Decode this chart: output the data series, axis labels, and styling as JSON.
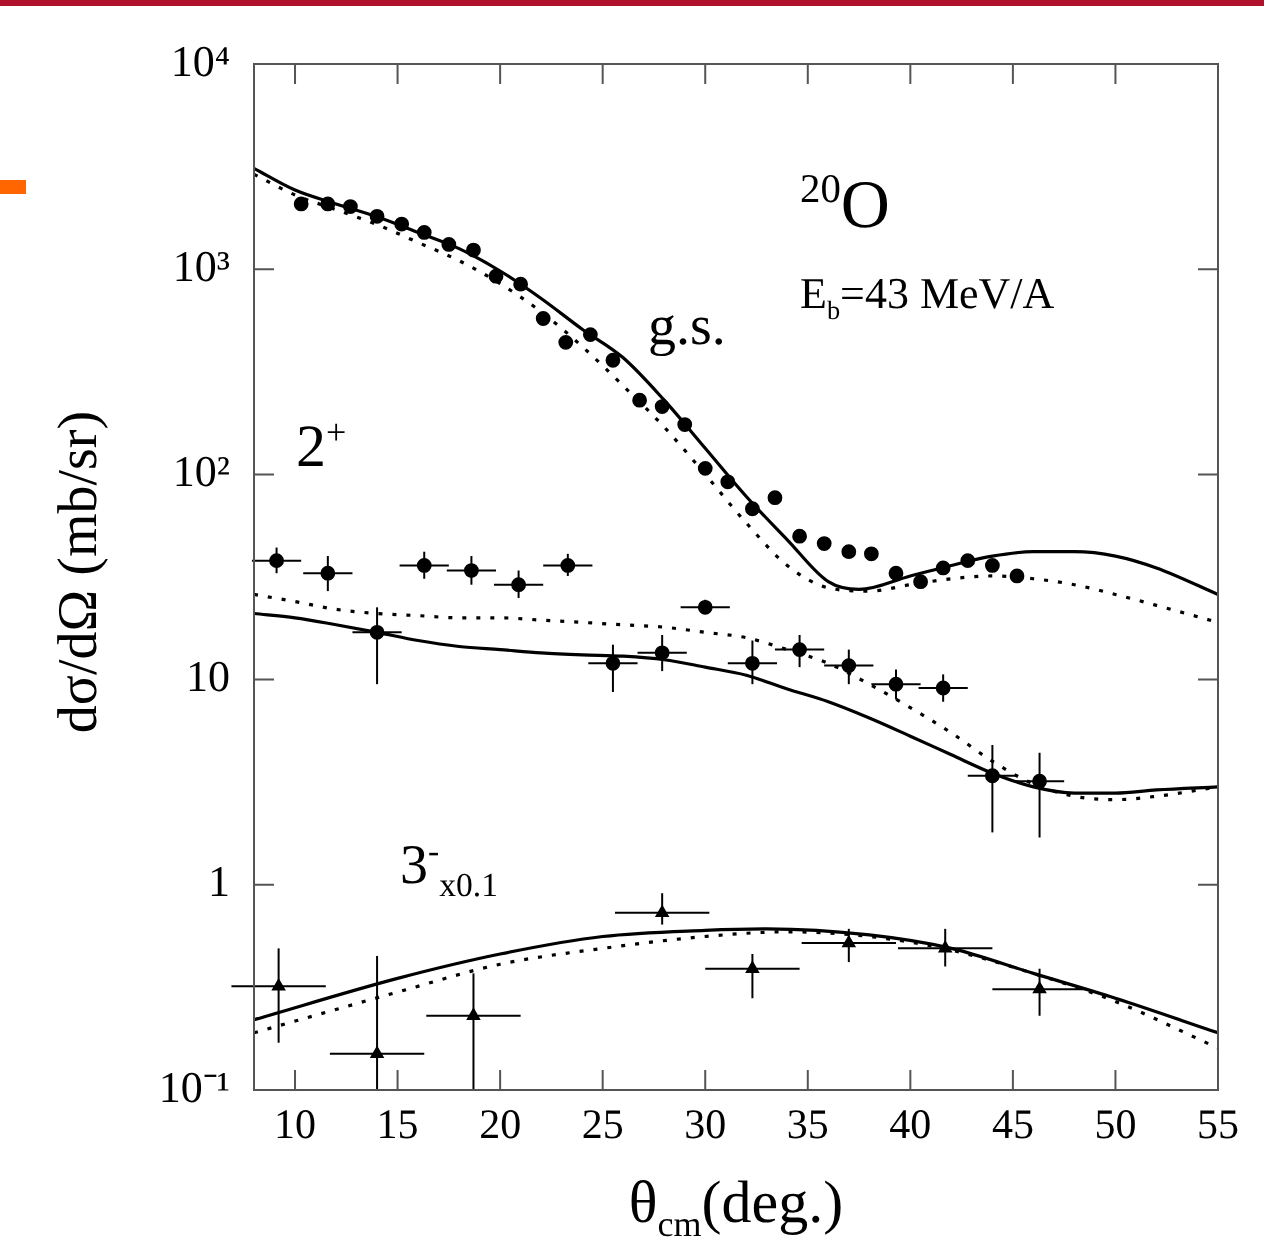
{
  "chart_data": {
    "type": "line",
    "xlabel": "θ$_{cm}$(deg.)",
    "ylabel": "dσ/dΩ (mb/sr)",
    "log": "y",
    "grid": false,
    "xlim": [
      8,
      55
    ],
    "xticks": [
      10,
      15,
      20,
      25,
      30,
      35,
      40,
      45,
      50,
      55
    ],
    "ylim": [
      0.1,
      10000
    ],
    "yticks": [
      {
        "value": 0.1,
        "label": "10⁻¹"
      },
      {
        "value": 1,
        "label": "1"
      },
      {
        "value": 10,
        "label": "10"
      },
      {
        "value": 100,
        "label": "10²"
      },
      {
        "value": 1000,
        "label": "10³"
      },
      {
        "value": 10000,
        "label": "10⁴"
      }
    ],
    "annotations": [
      "g.s.",
      "2$^{+}$",
      "3$^{-}$$_{x0.1}$",
      "$^{20}$O",
      "E$_{b}$=43 MeV/A"
    ],
    "series": [
      {
        "type": "scatter",
        "marker": "circle",
        "color": "#000000",
        "x": [
          10.3,
          11.6,
          12.7,
          14.0,
          15.2,
          16.3,
          17.5,
          18.7,
          19.8,
          21.0,
          22.1,
          23.2,
          24.4,
          25.5,
          26.8,
          27.9,
          29.0,
          30.0,
          31.1,
          32.3,
          33.4,
          34.6,
          35.8,
          37.0,
          38.1,
          39.3,
          40.5,
          41.6,
          42.8,
          44.0,
          45.2
        ],
        "values": [
          2080,
          2080,
          2020,
          1810,
          1660,
          1510,
          1320,
          1240,
          925,
          845,
          575,
          440,
          480,
          360,
          230,
          214,
          175,
          107,
          92,
          68,
          77,
          50,
          46,
          42,
          41,
          33,
          30,
          35,
          38,
          36,
          32
        ]
      },
      {
        "line_style": "solid",
        "color": "#000000",
        "x": [
          8,
          10,
          12,
          14,
          16,
          18,
          20,
          22,
          24,
          26,
          28,
          30,
          32,
          34,
          36,
          37.5,
          40,
          42,
          44,
          46,
          48,
          50,
          52,
          55
        ],
        "values": [
          3100,
          2430,
          2080,
          1800,
          1510,
          1260,
          980,
          720,
          510,
          370,
          230,
          134,
          78,
          48,
          30,
          27.5,
          32,
          36,
          40,
          42,
          42,
          40,
          35,
          26
        ]
      },
      {
        "line_style": "dotted",
        "color": "#000000",
        "x": [
          8,
          10,
          12,
          14,
          16,
          18,
          20,
          22,
          24,
          26,
          28,
          30,
          32,
          34,
          36,
          38,
          40,
          42,
          44,
          46,
          48,
          50,
          52,
          55
        ],
        "values": [
          2900,
          2300,
          1950,
          1650,
          1350,
          1100,
          850,
          620,
          420,
          270,
          170,
          100,
          58,
          36,
          28,
          27,
          29,
          31,
          32,
          31,
          29,
          26,
          23,
          19
        ]
      },
      {
        "type": "scatter",
        "marker": "circle",
        "color": "#000000",
        "x": [
          9.1,
          11.6,
          14.0,
          16.3,
          18.6,
          20.9,
          23.3,
          25.5,
          27.9,
          30.0,
          32.3,
          34.6,
          37.0,
          39.3,
          41.6,
          44.0,
          46.3
        ],
        "values": [
          38,
          33,
          17,
          36,
          34,
          29,
          36,
          12,
          13.5,
          22.5,
          12,
          14,
          11.7,
          9.5,
          9.1,
          3.4,
          3.2
        ],
        "errors": [
          [
            33,
            44
          ],
          [
            27,
            40
          ],
          [
            9.5,
            22.5
          ],
          [
            31,
            42
          ],
          [
            29,
            40
          ],
          [
            25,
            34
          ],
          [
            32,
            41
          ],
          [
            8.7,
            14.8
          ],
          [
            11,
            16.5
          ],
          [
            21,
            24.5
          ],
          [
            9.5,
            15.5
          ],
          [
            11.5,
            16.5
          ],
          [
            9.5,
            14
          ],
          [
            8,
            11.2
          ],
          [
            7.8,
            10.6
          ],
          [
            1.8,
            4.8
          ],
          [
            1.7,
            4.4
          ]
        ],
        "xerrors": [
          1.2,
          1.2,
          1.2,
          1.2,
          1.2,
          1.2,
          1.2,
          1.2,
          1.2,
          1.2,
          1.2,
          1.2,
          1.2,
          1.2,
          1.2,
          1.2,
          1.2
        ]
      },
      {
        "line_style": "solid",
        "color": "#000000",
        "x": [
          8,
          10,
          12,
          14,
          16,
          18,
          20,
          22,
          24,
          26,
          28,
          30,
          32,
          34,
          36,
          38,
          40,
          42,
          44,
          46,
          48,
          50,
          52,
          55
        ],
        "values": [
          21,
          20,
          18.5,
          17,
          15.5,
          14.5,
          14,
          13.5,
          13.2,
          13,
          12.5,
          11.5,
          10.5,
          9,
          7.8,
          6.5,
          5.3,
          4.3,
          3.5,
          3.0,
          2.8,
          2.8,
          2.9,
          3.0
        ]
      },
      {
        "line_style": "dotted",
        "color": "#000000",
        "x": [
          8,
          10,
          12,
          14,
          16,
          18,
          20,
          22,
          24,
          26,
          28,
          30,
          32,
          34,
          36,
          38,
          40,
          42,
          44,
          46,
          48,
          50,
          52,
          55
        ],
        "values": [
          26,
          24,
          22,
          21,
          20.5,
          20,
          20,
          19.5,
          19,
          18.5,
          18,
          17,
          16,
          14,
          12,
          9.5,
          7.3,
          5.5,
          4,
          3.1,
          2.7,
          2.6,
          2.7,
          3.0
        ]
      },
      {
        "type": "scatter",
        "marker": "triangle",
        "color": "#000000",
        "x": [
          9.2,
          14.0,
          18.7,
          27.9,
          32.3,
          37.0,
          41.7,
          46.3
        ],
        "values": [
          0.32,
          0.15,
          0.23,
          0.73,
          0.39,
          0.52,
          0.49,
          0.31
        ],
        "errors": [
          [
            0.17,
            0.49
          ],
          [
            0.1,
            0.45
          ],
          [
            0.1,
            0.37
          ],
          [
            0.64,
            0.91
          ],
          [
            0.28,
            0.46
          ],
          [
            0.42,
            0.61
          ],
          [
            0.4,
            0.61
          ],
          [
            0.23,
            0.39
          ]
        ],
        "xerrors": [
          2.3,
          2.3,
          2.3,
          2.3,
          2.3,
          2.3,
          2.3,
          2.3
        ]
      },
      {
        "line_style": "solid",
        "color": "#000000",
        "x": [
          8,
          15,
          20,
          25,
          30,
          33,
          38,
          42,
          46,
          50,
          55
        ],
        "values": [
          0.22,
          0.35,
          0.46,
          0.56,
          0.6,
          0.61,
          0.57,
          0.49,
          0.37,
          0.28,
          0.19
        ]
      },
      {
        "line_style": "dotted",
        "color": "#000000",
        "x": [
          8,
          15,
          20,
          25,
          30,
          34,
          38,
          42,
          46,
          50,
          55
        ],
        "values": [
          0.19,
          0.3,
          0.41,
          0.49,
          0.56,
          0.59,
          0.56,
          0.48,
          0.37,
          0.27,
          0.16
        ]
      }
    ]
  }
}
